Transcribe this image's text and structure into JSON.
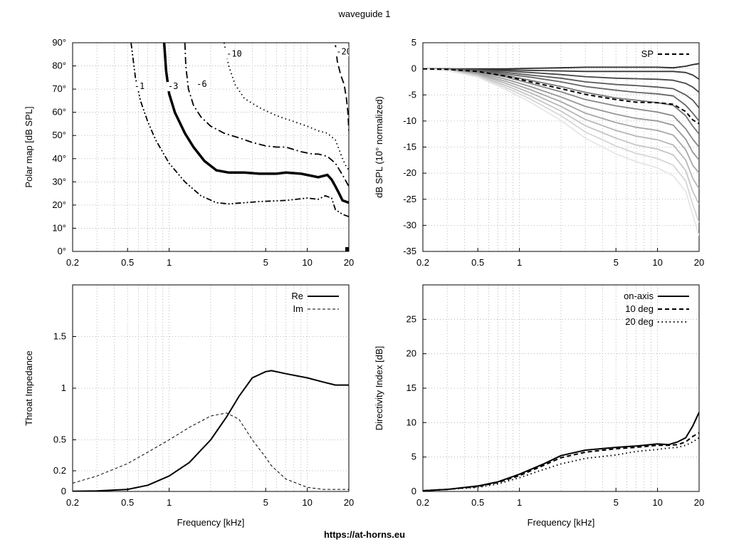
{
  "title": "waveguide 1",
  "footer": "https://at-horns.eu",
  "chart_data": [
    {
      "type": "contour",
      "ylabel": "Polar map [dB SPL]",
      "xscale": "log",
      "xlim": [
        0.2,
        20
      ],
      "ylim": [
        0,
        90
      ],
      "xticks": [
        0.2,
        0.5,
        1,
        5,
        10,
        20
      ],
      "xtick_labels": [
        "0.2",
        "0.5",
        "1",
        "5",
        "10",
        "20"
      ],
      "yticks": [
        0,
        10,
        20,
        30,
        40,
        50,
        60,
        70,
        80,
        90
      ],
      "ytick_labels": [
        "0°",
        "10°",
        "20°",
        "30°",
        "40°",
        "50°",
        "60°",
        "70°",
        "80°",
        "90°"
      ],
      "grid": true,
      "contours": [
        {
          "label": "-1",
          "label_at": [
            0.56,
            70
          ],
          "style": "dashdotdot",
          "points": [
            [
              0.53,
              90
            ],
            [
              0.57,
              75
            ],
            [
              0.62,
              65
            ],
            [
              0.7,
              56
            ],
            [
              0.8,
              48
            ],
            [
              1.0,
              38
            ],
            [
              1.3,
              30
            ],
            [
              1.7,
              24
            ],
            [
              2.2,
              21
            ],
            [
              2.7,
              20.5
            ],
            [
              3.5,
              21
            ],
            [
              4.5,
              21.5
            ],
            [
              7,
              22
            ],
            [
              10,
              23
            ],
            [
              12,
              22.5
            ],
            [
              13.5,
              24
            ],
            [
              15,
              23
            ],
            [
              16,
              18
            ],
            [
              18,
              16
            ],
            [
              20,
              15
            ]
          ]
        },
        {
          "label": "-3",
          "label_at": [
            0.98,
            70
          ],
          "style": "thick",
          "points": [
            [
              0.92,
              90
            ],
            [
              0.95,
              78
            ],
            [
              1.0,
              68
            ],
            [
              1.1,
              60
            ],
            [
              1.3,
              51
            ],
            [
              1.5,
              45
            ],
            [
              1.8,
              39
            ],
            [
              2.2,
              35
            ],
            [
              2.7,
              34
            ],
            [
              3.5,
              34
            ],
            [
              4.5,
              33.5
            ],
            [
              6,
              33.5
            ],
            [
              7,
              34
            ],
            [
              9,
              33.5
            ],
            [
              10,
              33
            ],
            [
              12,
              32
            ],
            [
              14,
              33
            ],
            [
              15,
              31
            ],
            [
              16,
              28
            ],
            [
              17,
              25
            ],
            [
              18,
              22
            ],
            [
              20,
              21
            ]
          ]
        },
        {
          "label": "-6",
          "label_at": [
            1.58,
            71
          ],
          "style": "dashdot",
          "points": [
            [
              1.3,
              90
            ],
            [
              1.32,
              80
            ],
            [
              1.38,
              70
            ],
            [
              1.5,
              63
            ],
            [
              1.7,
              58
            ],
            [
              2.0,
              54
            ],
            [
              2.5,
              51
            ],
            [
              3.2,
              49
            ],
            [
              4,
              47
            ],
            [
              5,
              45.5
            ],
            [
              6,
              45
            ],
            [
              7,
              45
            ],
            [
              9,
              43
            ],
            [
              11,
              42
            ],
            [
              12,
              42
            ],
            [
              14,
              41
            ],
            [
              16,
              38
            ],
            [
              18,
              33
            ],
            [
              20,
              28
            ]
          ]
        },
        {
          "label": "-10",
          "label_at": [
            2.6,
            84
          ],
          "style": "dotted",
          "points": [
            [
              2.5,
              90
            ],
            [
              2.7,
              80
            ],
            [
              3.0,
              72
            ],
            [
              3.5,
              66
            ],
            [
              4.5,
              62
            ],
            [
              6,
              58.5
            ],
            [
              8,
              56
            ],
            [
              10,
              54
            ],
            [
              12,
              52
            ],
            [
              14,
              51
            ],
            [
              16,
              48
            ],
            [
              17,
              44
            ],
            [
              18,
              40
            ],
            [
              19,
              37
            ],
            [
              20,
              35
            ]
          ]
        },
        {
          "label": "-20",
          "label_at": [
            16.2,
            85
          ],
          "style": "dashed",
          "points": [
            [
              16,
              89
            ],
            [
              16.5,
              82
            ],
            [
              17.5,
              76
            ],
            [
              18.5,
              72
            ],
            [
              19.2,
              66
            ],
            [
              19.7,
              60
            ],
            [
              20,
              52
            ]
          ]
        }
      ]
    },
    {
      "type": "line",
      "ylabel": "dB SPL (10° normalized)",
      "xscale": "log",
      "xlim": [
        0.2,
        20
      ],
      "ylim": [
        -35,
        5
      ],
      "xticks": [
        0.2,
        0.5,
        1,
        5,
        10,
        20
      ],
      "xtick_labels": [
        "0.2",
        "0.5",
        "1",
        "5",
        "10",
        "20"
      ],
      "yticks": [
        -35,
        -30,
        -25,
        -20,
        -15,
        -10,
        -5,
        0,
        5
      ],
      "ytick_labels": [
        "-35",
        "-30",
        "-25",
        "-20",
        "-15",
        "-10",
        "-5",
        "0",
        "5"
      ],
      "grid": true,
      "legend": [
        "SP"
      ],
      "legend_position": "top-right",
      "x": [
        0.2,
        0.3,
        0.5,
        0.8,
        1.2,
        2,
        3,
        5,
        7,
        10,
        13,
        16,
        18,
        20
      ],
      "series": [
        {
          "values": [
            0,
            0,
            0,
            0,
            0.1,
            0.2,
            0.3,
            0.3,
            0.3,
            0.3,
            0.2,
            0.5,
            0.8,
            1.0
          ]
        },
        {
          "values": [
            0,
            0,
            -0.1,
            -0.2,
            -0.3,
            -0.4,
            -0.5,
            -0.5,
            -0.5,
            -0.5,
            -0.5,
            -0.7,
            -1.2,
            -2.0
          ]
        },
        {
          "values": [
            0,
            0,
            -0.2,
            -0.4,
            -0.7,
            -1.1,
            -1.5,
            -1.8,
            -1.9,
            -2.0,
            -2.2,
            -2.8,
            -3.5,
            -4.5
          ]
        },
        {
          "values": [
            0,
            0,
            -0.3,
            -0.7,
            -1.2,
            -1.8,
            -2.5,
            -3.0,
            -3.2,
            -3.5,
            -3.8,
            -5.0,
            -6.0,
            -7.5
          ]
        },
        {
          "values": [
            0,
            -0.1,
            -0.4,
            -1.0,
            -1.6,
            -2.5,
            -3.4,
            -4.1,
            -4.5,
            -4.8,
            -5.2,
            -7.0,
            -8.5,
            -10.0
          ]
        },
        {
          "values": [
            0,
            -0.1,
            -0.5,
            -1.3,
            -2.2,
            -3.4,
            -4.5,
            -5.6,
            -6.0,
            -6.5,
            -7.0,
            -9.0,
            -11.0,
            -12.5
          ]
        },
        {
          "values": [
            0,
            -0.1,
            -0.6,
            -1.6,
            -2.8,
            -4.4,
            -5.9,
            -7.1,
            -7.7,
            -8.3,
            -9.0,
            -11.5,
            -13.5,
            -15.0
          ]
        },
        {
          "values": [
            0,
            -0.2,
            -0.8,
            -2.0,
            -3.4,
            -5.4,
            -7.2,
            -8.7,
            -9.5,
            -10.0,
            -10.8,
            -13.5,
            -16.0,
            -17.5
          ]
        },
        {
          "values": [
            0,
            -0.2,
            -1.0,
            -2.4,
            -4.0,
            -6.3,
            -8.5,
            -10.3,
            -11.2,
            -11.8,
            -12.7,
            -15.5,
            -18.5,
            -20.0
          ]
        },
        {
          "values": [
            0,
            -0.2,
            -1.1,
            -2.8,
            -4.6,
            -7.2,
            -9.7,
            -11.8,
            -12.9,
            -13.6,
            -14.6,
            -17.5,
            -21.0,
            -23.0
          ]
        },
        {
          "values": [
            0,
            -0.3,
            -1.3,
            -3.2,
            -5.2,
            -8.1,
            -10.9,
            -13.3,
            -14.6,
            -15.4,
            -16.5,
            -19.5,
            -23.5,
            -26.0
          ]
        },
        {
          "values": [
            0,
            -0.3,
            -1.4,
            -3.6,
            -5.8,
            -9.0,
            -12.1,
            -14.8,
            -16.2,
            -17.2,
            -18.5,
            -21.5,
            -26.0,
            -29.5
          ]
        },
        {
          "values": [
            0,
            -0.3,
            -1.6,
            -4.0,
            -6.4,
            -9.9,
            -13.3,
            -16.3,
            -17.8,
            -19.0,
            -20.5,
            -23.5,
            -28.0,
            -32.0
          ]
        },
        {
          "name": "SP",
          "dashed": true,
          "values": [
            0,
            -0.1,
            -0.5,
            -1.4,
            -2.5,
            -3.8,
            -4.9,
            -5.9,
            -6.4,
            -6.5,
            -6.8,
            -8.2,
            -9.8,
            -10.5
          ]
        }
      ]
    },
    {
      "type": "line",
      "xlabel": "Frequency [kHz]",
      "ylabel": "Throat Impedance",
      "xscale": "log",
      "xlim": [
        0.2,
        20
      ],
      "ylim": [
        0,
        2
      ],
      "xticks": [
        0.2,
        0.5,
        1,
        5,
        10,
        20
      ],
      "xtick_labels": [
        "0.2",
        "0.5",
        "1",
        "5",
        "10",
        "20"
      ],
      "yticks": [
        0,
        0.2,
        0.5,
        1,
        1.5
      ],
      "ytick_labels": [
        "0",
        "0.2",
        "0.5",
        "1",
        "1.5"
      ],
      "grid": true,
      "legend": [
        "Re",
        "Im"
      ],
      "legend_position": "top-right",
      "x": [
        0.2,
        0.3,
        0.5,
        0.7,
        1.0,
        1.4,
        2.0,
        2.6,
        3.2,
        4.0,
        5.0,
        5.5,
        7.0,
        10,
        13,
        16,
        20
      ],
      "series": [
        {
          "name": "Re",
          "values": [
            0.002,
            0.005,
            0.02,
            0.06,
            0.15,
            0.28,
            0.5,
            0.72,
            0.92,
            1.1,
            1.16,
            1.17,
            1.14,
            1.1,
            1.06,
            1.03,
            1.03
          ]
        },
        {
          "name": "Im",
          "dashed": true,
          "values": [
            0.08,
            0.15,
            0.27,
            0.38,
            0.5,
            0.62,
            0.73,
            0.76,
            0.7,
            0.5,
            0.33,
            0.25,
            0.12,
            0.04,
            0.02,
            0.02,
            0.02
          ]
        }
      ]
    },
    {
      "type": "line",
      "xlabel": "Frequency [kHz]",
      "ylabel": "Directivity Index [dB]",
      "xscale": "log",
      "xlim": [
        0.2,
        20
      ],
      "ylim": [
        0,
        30
      ],
      "xticks": [
        0.2,
        0.5,
        1,
        5,
        10,
        20
      ],
      "xtick_labels": [
        "0.2",
        "0.5",
        "1",
        "5",
        "10",
        "20"
      ],
      "yticks": [
        0,
        5,
        10,
        15,
        20,
        25
      ],
      "ytick_labels": [
        "0",
        "5",
        "10",
        "15",
        "20",
        "25"
      ],
      "grid": true,
      "legend": [
        "on-axis",
        "10 deg",
        "20 deg"
      ],
      "legend_position": "top-right",
      "x": [
        0.2,
        0.3,
        0.5,
        0.7,
        1.0,
        1.5,
        2.0,
        3.0,
        5.0,
        7.0,
        10,
        12,
        14,
        16,
        18,
        20
      ],
      "series": [
        {
          "name": "on-axis",
          "values": [
            0.1,
            0.3,
            0.8,
            1.4,
            2.5,
            4.0,
            5.2,
            6.0,
            6.4,
            6.6,
            6.9,
            6.8,
            7.2,
            7.8,
            9.5,
            11.5
          ]
        },
        {
          "name": "10 deg",
          "dashed": true,
          "values": [
            0.1,
            0.3,
            0.7,
            1.3,
            2.3,
            3.8,
            4.9,
            5.7,
            6.2,
            6.4,
            6.7,
            6.7,
            6.8,
            7.2,
            8.0,
            8.5
          ]
        },
        {
          "name": "20 deg",
          "dotted": true,
          "values": [
            0.1,
            0.3,
            0.6,
            1.1,
            2.0,
            3.2,
            4.0,
            4.8,
            5.3,
            5.8,
            6.1,
            6.3,
            6.4,
            6.7,
            7.2,
            7.8
          ]
        }
      ]
    }
  ]
}
